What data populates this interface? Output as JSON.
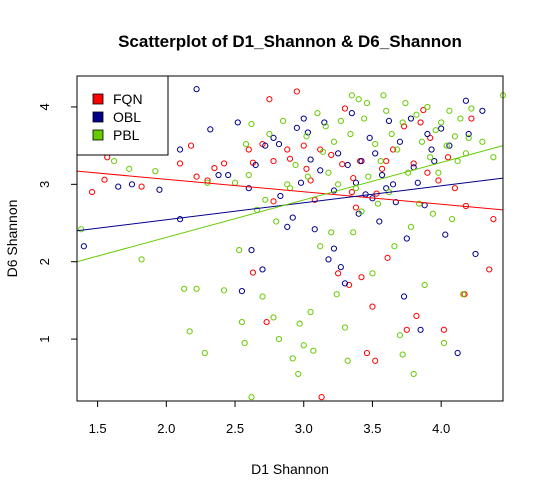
{
  "chart_data": {
    "type": "scatter",
    "title": "Scatterplot of D1_Shannon & D6_Shannon",
    "xlabel": "D1 Shannon",
    "ylabel": "D6 Shannon",
    "xlim": [
      1.35,
      4.45
    ],
    "ylim": [
      0.2,
      4.4
    ],
    "xticks": [
      "1.5",
      "2.0",
      "2.5",
      "3.0",
      "3.5",
      "4.0"
    ],
    "yticks": [
      "1",
      "2",
      "3",
      "4"
    ],
    "grid": false,
    "legend_position": "top-left",
    "series": [
      {
        "name": "FQN",
        "color": "#ff0000",
        "regression": {
          "x": [
            1.35,
            4.45
          ],
          "y": [
            3.17,
            2.67
          ]
        },
        "points": [
          [
            1.46,
            2.9
          ],
          [
            1.55,
            3.06
          ],
          [
            1.57,
            3.35
          ],
          [
            1.82,
            2.97
          ],
          [
            2.1,
            3.27
          ],
          [
            2.18,
            3.5
          ],
          [
            2.22,
            3.1
          ],
          [
            2.3,
            3.05
          ],
          [
            2.35,
            3.21
          ],
          [
            2.42,
            3.27
          ],
          [
            2.6,
            3.45
          ],
          [
            2.63,
            1.86
          ],
          [
            2.63,
            3.28
          ],
          [
            2.7,
            3.52
          ],
          [
            2.73,
            1.22
          ],
          [
            2.75,
            4.1
          ],
          [
            2.78,
            3.3
          ],
          [
            2.78,
            2.78
          ],
          [
            2.88,
            3.45
          ],
          [
            2.9,
            3.33
          ],
          [
            2.95,
            4.2
          ],
          [
            3.0,
            3.5
          ],
          [
            3.02,
            3.2
          ],
          [
            3.05,
            3.05
          ],
          [
            3.08,
            2.8
          ],
          [
            3.12,
            3.45
          ],
          [
            3.13,
            0.25
          ],
          [
            3.2,
            3.38
          ],
          [
            3.25,
            1.85
          ],
          [
            3.28,
            3.26
          ],
          [
            3.3,
            3.98
          ],
          [
            3.33,
            1.7
          ],
          [
            3.35,
            2.9
          ],
          [
            3.36,
            3.08
          ],
          [
            3.38,
            2.7
          ],
          [
            3.41,
            3.3
          ],
          [
            3.42,
            1.8
          ],
          [
            3.46,
            0.82
          ],
          [
            3.5,
            1.42
          ],
          [
            3.52,
            0.72
          ],
          [
            3.53,
            2.88
          ],
          [
            3.57,
            3.2
          ],
          [
            3.6,
            3.3
          ],
          [
            3.61,
            2.05
          ],
          [
            3.65,
            3.45
          ],
          [
            3.73,
            3.75
          ],
          [
            3.75,
            1.12
          ],
          [
            3.8,
            3.27
          ],
          [
            3.82,
            1.3
          ],
          [
            3.85,
            3.8
          ],
          [
            3.87,
            3.96
          ],
          [
            3.9,
            3.15
          ],
          [
            3.92,
            3.6
          ],
          [
            3.98,
            3.05
          ],
          [
            4.02,
            1.12
          ],
          [
            4.05,
            3.35
          ],
          [
            4.1,
            2.95
          ],
          [
            4.17,
            1.58
          ],
          [
            4.18,
            2.72
          ],
          [
            4.22,
            3.85
          ],
          [
            4.35,
            1.9
          ],
          [
            4.38,
            2.55
          ]
        ]
      },
      {
        "name": "OBL",
        "color": "#00008b",
        "regression": {
          "x": [
            1.35,
            4.45
          ],
          "y": [
            2.4,
            3.08
          ]
        },
        "points": [
          [
            1.4,
            2.2
          ],
          [
            1.65,
            2.97
          ],
          [
            1.75,
            3.0
          ],
          [
            1.95,
            2.93
          ],
          [
            2.1,
            2.55
          ],
          [
            2.1,
            3.45
          ],
          [
            2.22,
            4.23
          ],
          [
            2.32,
            3.71
          ],
          [
            2.38,
            3.12
          ],
          [
            2.45,
            3.12
          ],
          [
            2.52,
            3.8
          ],
          [
            2.55,
            1.62
          ],
          [
            2.6,
            2.95
          ],
          [
            2.62,
            2.15
          ],
          [
            2.65,
            3.25
          ],
          [
            2.7,
            1.9
          ],
          [
            2.72,
            3.5
          ],
          [
            2.78,
            3.6
          ],
          [
            2.82,
            3.52
          ],
          [
            2.83,
            2.85
          ],
          [
            2.88,
            2.45
          ],
          [
            2.92,
            2.57
          ],
          [
            2.95,
            3.73
          ],
          [
            2.98,
            3.02
          ],
          [
            3.0,
            3.85
          ],
          [
            3.03,
            3.67
          ],
          [
            3.05,
            3.32
          ],
          [
            3.08,
            2.42
          ],
          [
            3.12,
            3.18
          ],
          [
            3.15,
            3.8
          ],
          [
            3.18,
            2.03
          ],
          [
            3.22,
            2.92
          ],
          [
            3.22,
            2.17
          ],
          [
            3.25,
            3.4
          ],
          [
            3.27,
            1.93
          ],
          [
            3.3,
            1.72
          ],
          [
            3.32,
            3.25
          ],
          [
            3.35,
            3.92
          ],
          [
            3.38,
            3.02
          ],
          [
            3.4,
            2.62
          ],
          [
            3.42,
            3.3
          ],
          [
            3.45,
            2.87
          ],
          [
            3.48,
            3.6
          ],
          [
            3.5,
            2.82
          ],
          [
            3.52,
            3.4
          ],
          [
            3.55,
            2.52
          ],
          [
            3.57,
            3.12
          ],
          [
            3.6,
            2.95
          ],
          [
            3.62,
            3.82
          ],
          [
            3.65,
            3.0
          ],
          [
            3.67,
            2.77
          ],
          [
            3.7,
            3.55
          ],
          [
            3.73,
            1.55
          ],
          [
            3.75,
            2.3
          ],
          [
            3.78,
            3.85
          ],
          [
            3.8,
            3.22
          ],
          [
            3.83,
            3.02
          ],
          [
            3.85,
            1.12
          ],
          [
            3.88,
            2.73
          ],
          [
            3.9,
            3.65
          ],
          [
            3.93,
            3.45
          ],
          [
            3.95,
            3.3
          ],
          [
            4.0,
            3.72
          ],
          [
            4.03,
            2.35
          ],
          [
            4.06,
            3.5
          ],
          [
            4.12,
            0.82
          ],
          [
            4.18,
            4.08
          ],
          [
            4.2,
            3.65
          ],
          [
            4.25,
            2.1
          ],
          [
            4.3,
            3.95
          ]
        ]
      },
      {
        "name": "PBL",
        "color": "#66cc00",
        "regression": {
          "x": [
            1.35,
            4.45
          ],
          "y": [
            2.0,
            3.5
          ]
        },
        "points": [
          [
            1.38,
            2.42
          ],
          [
            1.62,
            3.3
          ],
          [
            1.73,
            3.2
          ],
          [
            1.82,
            2.03
          ],
          [
            1.92,
            3.17
          ],
          [
            2.13,
            1.65
          ],
          [
            2.17,
            1.1
          ],
          [
            2.22,
            1.65
          ],
          [
            2.28,
            0.82
          ],
          [
            2.3,
            3.02
          ],
          [
            2.42,
            1.63
          ],
          [
            2.5,
            3.02
          ],
          [
            2.53,
            2.15
          ],
          [
            2.55,
            1.22
          ],
          [
            2.57,
            0.95
          ],
          [
            2.58,
            3.52
          ],
          [
            2.6,
            3.12
          ],
          [
            2.62,
            0.25
          ],
          [
            2.62,
            3.78
          ],
          [
            2.66,
            2.67
          ],
          [
            2.7,
            1.55
          ],
          [
            2.72,
            2.8
          ],
          [
            2.75,
            3.65
          ],
          [
            2.78,
            1.28
          ],
          [
            2.8,
            2.52
          ],
          [
            2.82,
            1.0
          ],
          [
            2.85,
            3.82
          ],
          [
            2.88,
            3.0
          ],
          [
            2.9,
            2.95
          ],
          [
            2.92,
            0.75
          ],
          [
            2.94,
            3.25
          ],
          [
            2.96,
            0.55
          ],
          [
            2.97,
            1.2
          ],
          [
            3.0,
            0.92
          ],
          [
            3.02,
            3.62
          ],
          [
            3.03,
            3.1
          ],
          [
            3.05,
            1.35
          ],
          [
            3.07,
            0.85
          ],
          [
            3.1,
            3.92
          ],
          [
            3.12,
            2.2
          ],
          [
            3.14,
            3.42
          ],
          [
            3.16,
            3.75
          ],
          [
            3.18,
            3.15
          ],
          [
            3.2,
            2.38
          ],
          [
            3.22,
            3.55
          ],
          [
            3.24,
            1.58
          ],
          [
            3.25,
            3.0
          ],
          [
            3.27,
            3.82
          ],
          [
            3.3,
            1.15
          ],
          [
            3.32,
            0.72
          ],
          [
            3.34,
            3.65
          ],
          [
            3.35,
            4.15
          ],
          [
            3.36,
            2.38
          ],
          [
            3.38,
            2.95
          ],
          [
            3.4,
            4.1
          ],
          [
            3.42,
            2.65
          ],
          [
            3.44,
            3.85
          ],
          [
            3.46,
            4.05
          ],
          [
            3.47,
            3.1
          ],
          [
            3.5,
            1.85
          ],
          [
            3.52,
            3.52
          ],
          [
            3.54,
            2.75
          ],
          [
            3.56,
            3.3
          ],
          [
            3.58,
            4.15
          ],
          [
            3.6,
            3.95
          ],
          [
            3.62,
            2.9
          ],
          [
            3.64,
            3.65
          ],
          [
            3.66,
            2.2
          ],
          [
            3.68,
            3.45
          ],
          [
            3.7,
            1.05
          ],
          [
            3.72,
            3.8
          ],
          [
            3.72,
            0.8
          ],
          [
            3.74,
            4.05
          ],
          [
            3.76,
            3.15
          ],
          [
            3.78,
            2.45
          ],
          [
            3.8,
            0.55
          ],
          [
            3.82,
            3.9
          ],
          [
            3.84,
            2.75
          ],
          [
            3.86,
            3.55
          ],
          [
            3.88,
            1.7
          ],
          [
            3.9,
            4.0
          ],
          [
            3.92,
            3.35
          ],
          [
            3.94,
            2.62
          ],
          [
            3.96,
            3.7
          ],
          [
            3.98,
            3.15
          ],
          [
            4.0,
            3.8
          ],
          [
            4.02,
            0.95
          ],
          [
            4.04,
            3.5
          ],
          [
            4.06,
            3.95
          ],
          [
            4.08,
            2.55
          ],
          [
            4.1,
            3.62
          ],
          [
            4.12,
            3.3
          ],
          [
            4.14,
            3.85
          ],
          [
            4.16,
            1.58
          ],
          [
            4.18,
            3.4
          ],
          [
            4.2,
            3.6
          ],
          [
            4.22,
            3.98
          ],
          [
            4.3,
            3.55
          ],
          [
            4.38,
            3.35
          ],
          [
            4.45,
            4.15
          ]
        ]
      }
    ]
  }
}
